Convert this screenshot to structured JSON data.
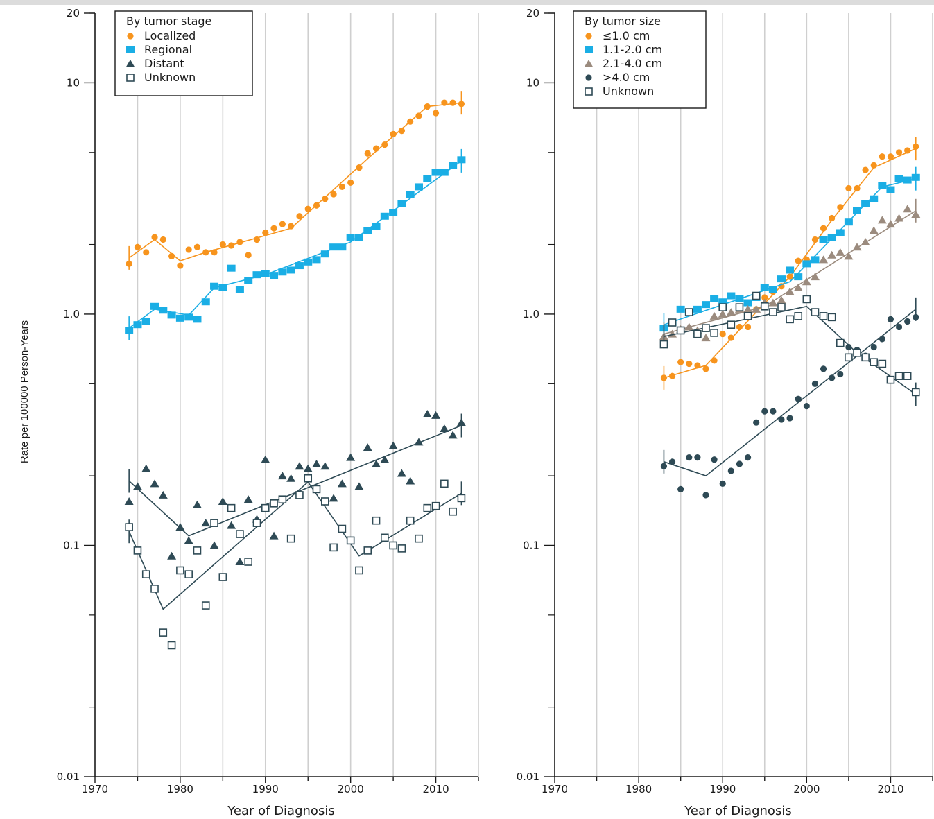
{
  "y_axis_label": "Rate per 100000 Person-Years",
  "chart_data": [
    {
      "type": "scatter",
      "y_scale": "log",
      "xlabel": "Year of Diagnosis",
      "ylabel": "Rate per 100000 Person-Years",
      "xlim": [
        1970,
        2015
      ],
      "ylim": [
        0.01,
        20
      ],
      "x_ticks": [
        "1970",
        "1980",
        "1990",
        "2000",
        "2010"
      ],
      "y_ticks": [
        "20",
        "10",
        "1.0",
        "0.1",
        "0.01"
      ],
      "grid": "vertical lines at 5-year intervals",
      "legend_title": "By tumor stage",
      "legend_placement": "top-left",
      "series": [
        {
          "name": "Localized",
          "marker": "circle",
          "color": "#f7941d",
          "x": [
            1974,
            1975,
            1976,
            1977,
            1978,
            1979,
            1980,
            1981,
            1982,
            1983,
            1984,
            1985,
            1986,
            1987,
            1988,
            1989,
            1990,
            1991,
            1992,
            1993,
            1994,
            1995,
            1996,
            1997,
            1998,
            1999,
            2000,
            2001,
            2002,
            2003,
            2004,
            2005,
            2006,
            2007,
            2008,
            2009,
            2010,
            2011,
            2012,
            2013
          ],
          "y": [
            1.65,
            1.95,
            1.85,
            2.15,
            2.1,
            1.78,
            1.62,
            1.9,
            1.95,
            1.85,
            1.85,
            2.0,
            1.98,
            2.05,
            1.8,
            2.1,
            2.25,
            2.35,
            2.45,
            2.4,
            2.65,
            2.85,
            2.95,
            3.15,
            3.3,
            3.55,
            3.7,
            4.3,
            4.95,
            5.2,
            5.4,
            6.0,
            6.2,
            6.8,
            7.2,
            7.9,
            7.4,
            8.2,
            8.2,
            8.1
          ],
          "fit_x": [
            1974,
            1977,
            1980,
            1983,
            1993,
            2002,
            2009,
            2013
          ],
          "fit_y": [
            1.75,
            2.1,
            1.7,
            1.85,
            2.35,
            4.7,
            7.9,
            8.2
          ]
        },
        {
          "name": "Regional",
          "marker": "square",
          "color": "#1aaee5",
          "x": [
            1974,
            1975,
            1976,
            1977,
            1978,
            1979,
            1980,
            1981,
            1982,
            1983,
            1984,
            1985,
            1986,
            1987,
            1988,
            1989,
            1990,
            1991,
            1992,
            1993,
            1994,
            1995,
            1996,
            1997,
            1998,
            1999,
            2000,
            2001,
            2002,
            2003,
            2004,
            2005,
            2006,
            2007,
            2008,
            2009,
            2010,
            2011,
            2012,
            2013
          ],
          "y": [
            0.85,
            0.9,
            0.93,
            1.08,
            1.04,
            0.99,
            0.96,
            0.97,
            0.95,
            1.13,
            1.32,
            1.3,
            1.58,
            1.28,
            1.4,
            1.48,
            1.5,
            1.47,
            1.52,
            1.55,
            1.62,
            1.68,
            1.72,
            1.82,
            1.95,
            1.95,
            2.15,
            2.15,
            2.3,
            2.4,
            2.65,
            2.75,
            3.0,
            3.3,
            3.55,
            3.85,
            4.1,
            4.1,
            4.4,
            4.65
          ],
          "fit_x": [
            1974,
            1977,
            1981,
            1984,
            1990,
            2000,
            2013
          ],
          "fit_y": [
            0.87,
            1.05,
            0.99,
            1.3,
            1.48,
            2.05,
            4.6
          ]
        },
        {
          "name": "Distant",
          "marker": "triangle",
          "color": "#2e4a55",
          "x": [
            1974,
            1975,
            1976,
            1977,
            1978,
            1979,
            1980,
            1981,
            1982,
            1983,
            1984,
            1985,
            1986,
            1987,
            1988,
            1989,
            1990,
            1991,
            1992,
            1993,
            1994,
            1995,
            1996,
            1997,
            1998,
            1999,
            2000,
            2001,
            2002,
            2003,
            2004,
            2005,
            2006,
            2007,
            2008,
            2009,
            2010,
            2011,
            2012,
            2013
          ],
          "y": [
            0.155,
            0.18,
            0.215,
            0.185,
            0.165,
            0.09,
            0.12,
            0.105,
            0.15,
            0.125,
            0.1,
            0.155,
            0.122,
            0.085,
            0.158,
            0.13,
            0.235,
            0.11,
            0.2,
            0.195,
            0.22,
            0.215,
            0.225,
            0.22,
            0.16,
            0.185,
            0.24,
            0.18,
            0.265,
            0.225,
            0.235,
            0.27,
            0.205,
            0.19,
            0.28,
            0.37,
            0.365,
            0.32,
            0.3,
            0.34
          ],
          "fit_x": [
            1974,
            1981,
            2013
          ],
          "fit_y": [
            0.19,
            0.11,
            0.33
          ]
        },
        {
          "name": "Unknown",
          "marker": "open-square",
          "color": "#2e4a55",
          "x": [
            1974,
            1975,
            1976,
            1977,
            1978,
            1979,
            1980,
            1981,
            1982,
            1983,
            1984,
            1985,
            1986,
            1987,
            1988,
            1989,
            1990,
            1991,
            1992,
            1993,
            1994,
            1995,
            1996,
            1997,
            1998,
            1999,
            2000,
            2001,
            2002,
            2003,
            2004,
            2005,
            2006,
            2007,
            2008,
            2009,
            2010,
            2011,
            2012,
            2013
          ],
          "y": [
            0.12,
            0.095,
            0.075,
            0.065,
            0.042,
            0.037,
            0.078,
            0.075,
            0.095,
            0.055,
            0.125,
            0.073,
            0.145,
            0.112,
            0.085,
            0.125,
            0.145,
            0.152,
            0.158,
            0.107,
            0.165,
            0.195,
            0.175,
            0.155,
            0.098,
            0.118,
            0.105,
            0.078,
            0.095,
            0.128,
            0.108,
            0.1,
            0.097,
            0.128,
            0.107,
            0.145,
            0.148,
            0.185,
            0.14,
            0.16
          ],
          "fit_x": [
            1974,
            1978,
            1995,
            2001,
            2013
          ],
          "fit_y": [
            0.115,
            0.053,
            0.188,
            0.09,
            0.168
          ]
        }
      ]
    },
    {
      "type": "scatter",
      "y_scale": "log",
      "xlabel": "Year of Diagnosis",
      "ylabel": "",
      "xlim": [
        1970,
        2015
      ],
      "ylim": [
        0.01,
        20
      ],
      "x_ticks": [
        "1970",
        "1980",
        "1990",
        "2000",
        "2010"
      ],
      "y_ticks": [
        "20",
        "10",
        "1.0",
        "0.1",
        "0.01"
      ],
      "grid": "vertical lines at 5-year intervals",
      "legend_title": "By tumor size",
      "legend_placement": "top-left",
      "series": [
        {
          "name": "≤1.0 cm",
          "marker": "circle",
          "color": "#f7941d",
          "x": [
            1983,
            1984,
            1985,
            1986,
            1987,
            1988,
            1989,
            1990,
            1991,
            1992,
            1993,
            1994,
            1995,
            1996,
            1997,
            1998,
            1999,
            2000,
            2001,
            2002,
            2003,
            2004,
            2005,
            2006,
            2007,
            2008,
            2009,
            2010,
            2011,
            2012,
            2013
          ],
          "y": [
            0.53,
            0.54,
            0.62,
            0.61,
            0.6,
            0.58,
            0.63,
            0.82,
            0.79,
            0.88,
            0.88,
            1.05,
            1.18,
            1.25,
            1.32,
            1.45,
            1.7,
            1.72,
            2.1,
            2.35,
            2.6,
            2.9,
            3.5,
            3.5,
            4.2,
            4.4,
            4.8,
            4.8,
            5.0,
            5.1,
            5.3
          ],
          "fit_x": [
            1983,
            1988,
            1994,
            1998,
            2003,
            2008,
            2013
          ],
          "fit_y": [
            0.53,
            0.6,
            1.02,
            1.45,
            2.55,
            4.3,
            5.2
          ]
        },
        {
          "name": "1.1-2.0 cm",
          "marker": "square",
          "color": "#1aaee5",
          "x": [
            1983,
            1984,
            1985,
            1986,
            1987,
            1988,
            1989,
            1990,
            1991,
            1992,
            1993,
            1994,
            1995,
            1996,
            1997,
            1998,
            1999,
            2000,
            2001,
            2002,
            2003,
            2004,
            2005,
            2006,
            2007,
            2008,
            2009,
            2010,
            2011,
            2012,
            2013
          ],
          "y": [
            0.87,
            0.92,
            1.05,
            1.02,
            1.05,
            1.1,
            1.17,
            1.13,
            1.2,
            1.17,
            1.12,
            1.18,
            1.3,
            1.28,
            1.42,
            1.55,
            1.45,
            1.65,
            1.72,
            2.1,
            2.15,
            2.25,
            2.5,
            2.8,
            3.0,
            3.15,
            3.6,
            3.45,
            3.85,
            3.8,
            3.9
          ],
          "fit_x": [
            1983,
            1998,
            2009,
            2013
          ],
          "fit_y": [
            0.9,
            1.38,
            3.55,
            3.85
          ]
        },
        {
          "name": "2.1-4.0 cm",
          "marker": "triangle",
          "color": "#9b8b7e",
          "x": [
            1983,
            1984,
            1985,
            1986,
            1987,
            1988,
            1989,
            1990,
            1991,
            1992,
            1993,
            1994,
            1995,
            1996,
            1997,
            1998,
            1999,
            2000,
            2001,
            2002,
            2003,
            2004,
            2005,
            2006,
            2007,
            2008,
            2009,
            2010,
            2011,
            2012,
            2013
          ],
          "y": [
            0.8,
            0.82,
            0.86,
            0.88,
            0.85,
            0.79,
            0.98,
            1.0,
            1.02,
            1.05,
            1.05,
            1.05,
            1.12,
            1.12,
            1.15,
            1.25,
            1.3,
            1.38,
            1.45,
            1.72,
            1.8,
            1.85,
            1.78,
            1.95,
            2.05,
            2.3,
            2.55,
            2.45,
            2.6,
            2.85,
            2.7
          ],
          "fit_x": [
            1983,
            1995,
            2013
          ],
          "fit_y": [
            0.82,
            1.08,
            2.8
          ]
        },
        {
          "name": ">4.0 cm",
          "marker": "circle",
          "color": "#2e4a55",
          "x": [
            1983,
            1984,
            1985,
            1986,
            1987,
            1988,
            1989,
            1990,
            1991,
            1992,
            1993,
            1994,
            1995,
            1996,
            1997,
            1998,
            1999,
            2000,
            2001,
            2002,
            2003,
            2004,
            2005,
            2006,
            2007,
            2008,
            2009,
            2010,
            2011,
            2012,
            2013
          ],
          "y": [
            0.22,
            0.23,
            0.175,
            0.24,
            0.24,
            0.165,
            0.235,
            0.185,
            0.21,
            0.225,
            0.24,
            0.34,
            0.38,
            0.38,
            0.35,
            0.355,
            0.43,
            0.4,
            0.5,
            0.58,
            0.53,
            0.55,
            0.72,
            0.7,
            0.66,
            0.72,
            0.78,
            0.95,
            0.88,
            0.93,
            0.97
          ],
          "fit_x": [
            1983,
            1988,
            2013
          ],
          "fit_y": [
            0.23,
            0.2,
            1.05
          ]
        },
        {
          "name": "Unknown",
          "marker": "open-square",
          "color": "#2e4a55",
          "x": [
            1983,
            1984,
            1985,
            1986,
            1987,
            1988,
            1989,
            1990,
            1991,
            1992,
            1993,
            1994,
            1995,
            1996,
            1997,
            1998,
            1999,
            2000,
            2001,
            2002,
            2003,
            2004,
            2005,
            2006,
            2007,
            2008,
            2009,
            2010,
            2011,
            2012,
            2013
          ],
          "y": [
            0.74,
            0.92,
            0.85,
            1.02,
            0.82,
            0.87,
            0.83,
            1.07,
            0.9,
            1.07,
            0.98,
            1.2,
            1.08,
            1.02,
            1.07,
            0.95,
            0.98,
            1.16,
            1.02,
            0.98,
            0.97,
            0.75,
            0.65,
            0.68,
            0.65,
            0.62,
            0.61,
            0.52,
            0.54,
            0.54,
            0.46
          ],
          "fit_x": [
            1983,
            2000,
            2006,
            2013
          ],
          "fit_y": [
            0.8,
            1.08,
            0.68,
            0.45
          ]
        }
      ]
    }
  ]
}
